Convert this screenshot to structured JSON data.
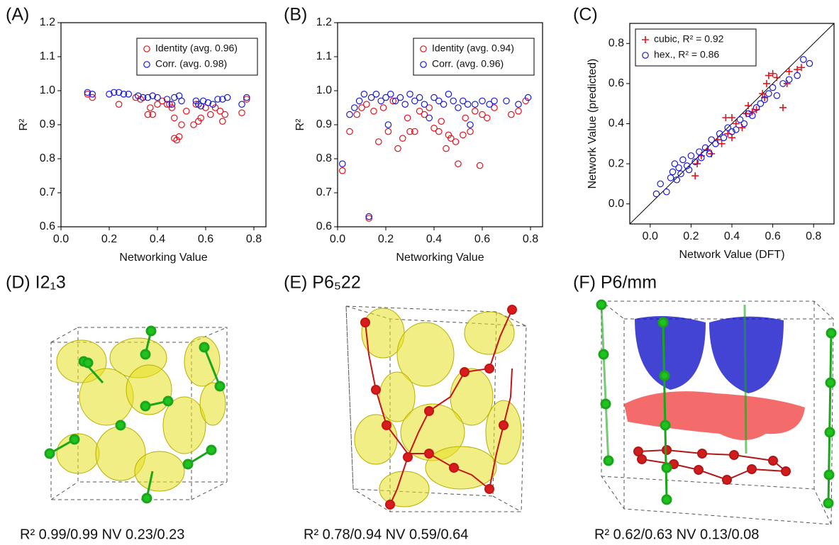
{
  "chart_data": [
    {
      "type": "scatter",
      "panel": "(A)",
      "xlabel": "Networking Value",
      "ylabel": "R²",
      "xlim": [
        0,
        0.85
      ],
      "ylim": [
        0.6,
        1.2
      ],
      "xticks": [
        {
          "value": 0,
          "label": "0.0"
        },
        0.2,
        0.4,
        0.6,
        0.8
      ],
      "yticks": [
        0.6,
        0.7,
        0.8,
        0.9,
        {
          "value": 1,
          "label": "1.0"
        },
        1.1,
        1.2
      ],
      "legend": "upper right",
      "series": [
        {
          "name": "Identity (avg. 0.96)",
          "color": "#e0141e",
          "marker": "circle",
          "x": [
            0.11,
            0.13,
            0.24,
            0.31,
            0.33,
            0.36,
            0.37,
            0.38,
            0.4,
            0.42,
            0.45,
            0.46,
            0.47,
            0.48,
            0.49,
            0.47,
            0.5,
            0.52,
            0.55,
            0.57,
            0.58,
            0.6,
            0.62,
            0.64,
            0.66,
            0.67,
            0.68,
            0.75,
            0.77,
            0.56,
            0.44
          ],
          "values": [
            0.99,
            0.98,
            0.96,
            0.98,
            0.975,
            0.93,
            0.95,
            0.93,
            0.96,
            0.97,
            0.96,
            0.95,
            0.86,
            0.855,
            0.865,
            0.92,
            0.9,
            0.94,
            0.9,
            0.91,
            0.92,
            0.95,
            0.93,
            0.95,
            0.94,
            0.91,
            0.93,
            0.935,
            0.975,
            0.96,
            0.96
          ]
        },
        {
          "name": "Corr. (avg. 0.98)",
          "color": "#1a1ad6",
          "marker": "circle",
          "x": [
            0.11,
            0.13,
            0.2,
            0.22,
            0.24,
            0.26,
            0.28,
            0.32,
            0.34,
            0.36,
            0.38,
            0.4,
            0.44,
            0.46,
            0.47,
            0.49,
            0.5,
            0.56,
            0.57,
            0.58,
            0.59,
            0.61,
            0.63,
            0.65,
            0.67,
            0.69,
            0.75,
            0.77
          ],
          "values": [
            0.995,
            0.99,
            0.99,
            0.995,
            0.995,
            0.99,
            0.99,
            0.985,
            0.98,
            0.98,
            0.985,
            0.98,
            0.975,
            0.96,
            0.98,
            0.985,
            0.97,
            0.97,
            0.96,
            0.955,
            0.97,
            0.965,
            0.96,
            0.975,
            0.975,
            0.98,
            0.96,
            0.98
          ]
        }
      ]
    },
    {
      "type": "scatter",
      "panel": "(B)",
      "xlabel": "Networking Value",
      "ylabel": "R²",
      "xlim": [
        0,
        0.85
      ],
      "ylim": [
        0.6,
        1.2
      ],
      "xticks": [
        {
          "value": 0,
          "label": "0.0"
        },
        0.2,
        0.4,
        0.6,
        0.8
      ],
      "yticks": [
        0.6,
        0.7,
        0.8,
        0.9,
        {
          "value": 1,
          "label": "1.0"
        },
        1.1,
        1.2
      ],
      "legend": "upper right",
      "series": [
        {
          "name": "Identity (avg. 0.94)",
          "color": "#e0141e",
          "marker": "circle",
          "x": [
            0.02,
            0.05,
            0.08,
            0.1,
            0.12,
            0.13,
            0.15,
            0.17,
            0.19,
            0.21,
            0.23,
            0.25,
            0.27,
            0.29,
            0.3,
            0.32,
            0.34,
            0.36,
            0.38,
            0.4,
            0.42,
            0.43,
            0.45,
            0.46,
            0.47,
            0.49,
            0.5,
            0.52,
            0.53,
            0.55,
            0.57,
            0.59,
            0.6,
            0.62,
            0.65,
            0.72,
            0.75,
            0.78
          ],
          "values": [
            0.765,
            0.88,
            0.93,
            0.95,
            0.96,
            0.625,
            0.94,
            0.85,
            0.95,
            0.88,
            0.97,
            0.83,
            0.86,
            0.92,
            0.88,
            0.88,
            0.94,
            0.93,
            0.95,
            0.89,
            0.88,
            0.91,
            0.83,
            0.87,
            0.86,
            0.85,
            0.785,
            0.87,
            0.92,
            0.88,
            0.94,
            0.78,
            0.93,
            0.92,
            0.95,
            0.93,
            0.94,
            0.97
          ]
        },
        {
          "name": "Corr. (avg. 0.96)",
          "color": "#1a1ad6",
          "marker": "circle",
          "x": [
            0.02,
            0.05,
            0.07,
            0.09,
            0.11,
            0.13,
            0.14,
            0.16,
            0.18,
            0.2,
            0.21,
            0.22,
            0.24,
            0.26,
            0.28,
            0.3,
            0.32,
            0.34,
            0.36,
            0.38,
            0.4,
            0.42,
            0.44,
            0.46,
            0.48,
            0.5,
            0.52,
            0.54,
            0.55,
            0.57,
            0.6,
            0.63,
            0.65,
            0.7,
            0.75,
            0.79
          ],
          "values": [
            0.785,
            0.93,
            0.95,
            0.97,
            0.99,
            0.63,
            0.98,
            0.99,
            0.97,
            0.98,
            0.9,
            0.99,
            0.97,
            0.98,
            0.96,
            0.99,
            0.97,
            0.98,
            0.96,
            0.92,
            0.98,
            0.97,
            0.96,
            0.99,
            0.97,
            0.95,
            0.97,
            0.96,
            0.9,
            0.96,
            0.97,
            0.96,
            0.97,
            0.97,
            0.96,
            0.98
          ]
        }
      ]
    },
    {
      "type": "scatter",
      "panel": "(C)",
      "xlabel": "Network Value (DFT)",
      "ylabel": "Network Value (predicted)",
      "xlim": [
        -0.1,
        0.9
      ],
      "ylim": [
        -0.1,
        0.9
      ],
      "xticks": [
        {
          "value": 0,
          "label": "0.0"
        },
        0.2,
        0.4,
        0.6,
        0.8
      ],
      "yticks": [
        {
          "value": 0,
          "label": "0.0"
        },
        0.2,
        0.4,
        0.6,
        0.8
      ],
      "legend": "upper left",
      "diagonal": true,
      "series": [
        {
          "name": "cubic, R² = 0.92",
          "color": "#e0141e",
          "marker": "plus",
          "x": [
            0.22,
            0.25,
            0.28,
            0.3,
            0.33,
            0.35,
            0.37,
            0.38,
            0.4,
            0.42,
            0.45,
            0.47,
            0.48,
            0.5,
            0.52,
            0.55,
            0.57,
            0.58,
            0.6,
            0.62,
            0.65,
            0.67,
            0.68,
            0.72,
            0.74,
            0.23,
            0.4,
            0.56
          ],
          "values": [
            0.14,
            0.24,
            0.27,
            0.25,
            0.32,
            0.3,
            0.43,
            0.35,
            0.33,
            0.4,
            0.38,
            0.45,
            0.49,
            0.46,
            0.47,
            0.55,
            0.6,
            0.64,
            0.65,
            0.63,
            0.48,
            0.6,
            0.66,
            0.67,
            0.68,
            0.2,
            0.43,
            0.53
          ]
        },
        {
          "name": "hex., R² = 0.86",
          "color": "#1a1ad6",
          "marker": "circle",
          "x": [
            0.03,
            0.05,
            0.08,
            0.1,
            0.11,
            0.12,
            0.13,
            0.14,
            0.15,
            0.16,
            0.18,
            0.19,
            0.2,
            0.22,
            0.24,
            0.25,
            0.27,
            0.29,
            0.3,
            0.32,
            0.34,
            0.36,
            0.38,
            0.4,
            0.42,
            0.44,
            0.46,
            0.48,
            0.5,
            0.52,
            0.54,
            0.56,
            0.58,
            0.6,
            0.62,
            0.65,
            0.68,
            0.72,
            0.75,
            0.78
          ],
          "values": [
            0.05,
            0.1,
            0.06,
            0.13,
            0.16,
            0.2,
            0.12,
            0.18,
            0.15,
            0.22,
            0.19,
            0.17,
            0.24,
            0.21,
            0.26,
            0.23,
            0.28,
            0.25,
            0.32,
            0.3,
            0.35,
            0.33,
            0.38,
            0.36,
            0.37,
            0.42,
            0.4,
            0.45,
            0.44,
            0.48,
            0.5,
            0.52,
            0.55,
            0.58,
            0.54,
            0.6,
            0.62,
            0.64,
            0.72,
            0.7
          ]
        }
      ]
    }
  ],
  "structures": [
    {
      "title": "(D) I2₁3",
      "caption": "R² 0.99/0.99 NV 0.23/0.23"
    },
    {
      "title": "(E) P6₅22",
      "caption": "R² 0.78/0.94 NV 0.59/0.64"
    },
    {
      "title": "(F) P6/mm",
      "caption": "R² 0.62/0.63 NV 0.13/0.08"
    }
  ]
}
